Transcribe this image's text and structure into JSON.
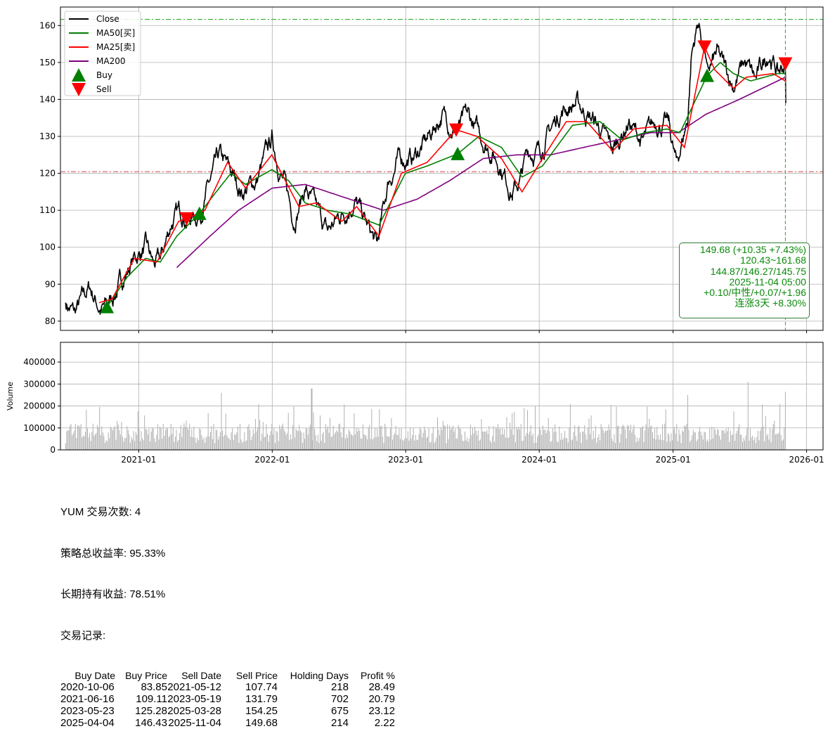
{
  "chart_data": [
    {
      "type": "line",
      "ticker": "YUM",
      "ylim": [
        77.5,
        165
      ],
      "yticks": [
        80,
        90,
        100,
        110,
        120,
        130,
        140,
        150,
        160
      ],
      "xlim": [
        "2020-06-01",
        "2026-02-15"
      ],
      "xticks": [
        {
          "date": "2021-01-01",
          "label": "2021-01"
        },
        {
          "date": "2022-01-01",
          "label": "2022-01"
        },
        {
          "date": "2023-01-01",
          "label": "2023-01"
        },
        {
          "date": "2024-01-01",
          "label": "2024-01"
        },
        {
          "date": "2025-01-01",
          "label": "2025-01"
        },
        {
          "date": "2026-01-01",
          "label": "2026-01"
        }
      ],
      "grid": true,
      "legend": "top-left",
      "legend_entries": [
        {
          "label": "Close",
          "color": "#000000",
          "kind": "line"
        },
        {
          "label": "MA50[买]",
          "color": "#008000",
          "kind": "line"
        },
        {
          "label": "MA25[卖]",
          "color": "#ff0000",
          "kind": "line"
        },
        {
          "label": "MA200",
          "color": "#800080",
          "kind": "line"
        },
        {
          "label": "Buy",
          "color": "#008000",
          "kind": "up-triangle"
        },
        {
          "label": "Sell",
          "color": "#ff0000",
          "kind": "down-triangle"
        }
      ],
      "hlines": [
        {
          "y": 161.68,
          "color": "#22aa22",
          "style": "dashdot"
        },
        {
          "y": 120.43,
          "color": "#dd4444",
          "style": "dashdot"
        }
      ],
      "vline": {
        "date": "2025-11-04",
        "color": "#22aa22",
        "style": "dashed"
      },
      "series_keypoints": {
        "close": [
          [
            "2020-06-15",
            85
          ],
          [
            "2020-07-10",
            82
          ],
          [
            "2020-08-20",
            89
          ],
          [
            "2020-09-20",
            83
          ],
          [
            "2020-10-06",
            83.85
          ],
          [
            "2020-11-10",
            90
          ],
          [
            "2020-12-20",
            97
          ],
          [
            "2021-01-20",
            100
          ],
          [
            "2021-02-10",
            95
          ],
          [
            "2021-03-01",
            96
          ],
          [
            "2021-04-01",
            107
          ],
          [
            "2021-05-01",
            110
          ],
          [
            "2021-05-12",
            107.74
          ],
          [
            "2021-06-16",
            109.11
          ],
          [
            "2021-07-10",
            116
          ],
          [
            "2021-08-10",
            124
          ],
          [
            "2021-09-10",
            120
          ],
          [
            "2021-10-10",
            115
          ],
          [
            "2021-11-20",
            118
          ],
          [
            "2021-12-31",
            129
          ],
          [
            "2022-02-01",
            118
          ],
          [
            "2022-03-01",
            108
          ],
          [
            "2022-04-01",
            116
          ],
          [
            "2022-05-01",
            110
          ],
          [
            "2022-06-01",
            104
          ],
          [
            "2022-07-01",
            108
          ],
          [
            "2022-08-15",
            113
          ],
          [
            "2022-09-15",
            106
          ],
          [
            "2022-10-15",
            100
          ],
          [
            "2022-11-15",
            118
          ],
          [
            "2022-12-15",
            124
          ],
          [
            "2023-01-20",
            124
          ],
          [
            "2023-03-01",
            129
          ],
          [
            "2023-04-10",
            136
          ],
          [
            "2023-05-19",
            131.79
          ],
          [
            "2023-06-20",
            135
          ],
          [
            "2023-08-01",
            129
          ],
          [
            "2023-09-15",
            123
          ],
          [
            "2023-10-20",
            115
          ],
          [
            "2023-11-10",
            118
          ],
          [
            "2023-12-01",
            126
          ],
          [
            "2024-01-01",
            126
          ],
          [
            "2024-03-01",
            137
          ],
          [
            "2024-04-10",
            139
          ],
          [
            "2024-06-01",
            134
          ],
          [
            "2024-07-20",
            126
          ],
          [
            "2024-09-01",
            134
          ],
          [
            "2024-10-10",
            128
          ],
          [
            "2024-11-15",
            134
          ],
          [
            "2024-12-20",
            133
          ],
          [
            "2025-01-10",
            122
          ],
          [
            "2025-02-10",
            135
          ],
          [
            "2025-02-20",
            152
          ],
          [
            "2025-03-10",
            161
          ],
          [
            "2025-03-28",
            154.25
          ],
          [
            "2025-04-04",
            146.43
          ],
          [
            "2025-05-01",
            152
          ],
          [
            "2025-06-15",
            144
          ],
          [
            "2025-07-15",
            150
          ],
          [
            "2025-08-15",
            145
          ],
          [
            "2025-09-20",
            153
          ],
          [
            "2025-10-15",
            147
          ],
          [
            "2025-11-04",
            149.68
          ],
          [
            "2025-11-05",
            139
          ]
        ],
        "ma50": [
          [
            "2020-10-06",
            83.85
          ],
          [
            "2020-12-01",
            92
          ],
          [
            "2021-01-20",
            97
          ],
          [
            "2021-03-01",
            96
          ],
          [
            "2021-04-15",
            103
          ],
          [
            "2021-06-16",
            109.11
          ],
          [
            "2021-08-01",
            115
          ],
          [
            "2021-09-10",
            120
          ],
          [
            "2021-10-20",
            117
          ],
          [
            "2021-12-31",
            121
          ],
          [
            "2022-02-15",
            118
          ],
          [
            "2022-04-01",
            112
          ],
          [
            "2022-06-01",
            110
          ],
          [
            "2022-08-01",
            109
          ],
          [
            "2022-10-20",
            106
          ],
          [
            "2022-12-31",
            120
          ],
          [
            "2023-03-01",
            122
          ],
          [
            "2023-05-23",
            125.28
          ],
          [
            "2023-07-20",
            130
          ],
          [
            "2023-09-20",
            127
          ],
          [
            "2023-11-15",
            119
          ],
          [
            "2024-01-10",
            122
          ],
          [
            "2024-04-01",
            133
          ],
          [
            "2024-06-15",
            134
          ],
          [
            "2024-08-15",
            129
          ],
          [
            "2024-10-15",
            131
          ],
          [
            "2024-12-15",
            132
          ],
          [
            "2025-01-20",
            131
          ],
          [
            "2025-04-04",
            146.43
          ],
          [
            "2025-05-10",
            150
          ],
          [
            "2025-06-15",
            147
          ],
          [
            "2025-08-01",
            145
          ],
          [
            "2025-10-15",
            147
          ],
          [
            "2025-11-04",
            147
          ]
        ],
        "ma25": [
          [
            "2020-09-15",
            85
          ],
          [
            "2020-10-20",
            86
          ],
          [
            "2020-12-20",
            97
          ],
          [
            "2021-02-20",
            96
          ],
          [
            "2021-04-20",
            107
          ],
          [
            "2021-05-12",
            107.74
          ],
          [
            "2021-07-01",
            110
          ],
          [
            "2021-09-01",
            123
          ],
          [
            "2021-10-20",
            116
          ],
          [
            "2021-12-31",
            125
          ],
          [
            "2022-03-15",
            111
          ],
          [
            "2022-05-01",
            112
          ],
          [
            "2022-07-10",
            107
          ],
          [
            "2022-08-20",
            111
          ],
          [
            "2022-10-20",
            103
          ],
          [
            "2022-12-20",
            120
          ],
          [
            "2023-03-01",
            123
          ],
          [
            "2023-05-19",
            131.79
          ],
          [
            "2023-07-15",
            130
          ],
          [
            "2023-09-20",
            124
          ],
          [
            "2023-11-15",
            115
          ],
          [
            "2024-01-10",
            124
          ],
          [
            "2024-03-15",
            134
          ],
          [
            "2024-05-10",
            134
          ],
          [
            "2024-07-20",
            126
          ],
          [
            "2024-09-15",
            132
          ],
          [
            "2024-12-15",
            133
          ],
          [
            "2025-02-01",
            127
          ],
          [
            "2025-03-28",
            154.25
          ],
          [
            "2025-04-25",
            148
          ],
          [
            "2025-06-15",
            143
          ],
          [
            "2025-07-20",
            146
          ],
          [
            "2025-10-01",
            147
          ],
          [
            "2025-11-04",
            145
          ]
        ],
        "ma200": [
          [
            "2021-04-15",
            94.5
          ],
          [
            "2021-07-15",
            103
          ],
          [
            "2021-10-01",
            110
          ],
          [
            "2022-01-01",
            116
          ],
          [
            "2022-04-01",
            117
          ],
          [
            "2022-08-01",
            113
          ],
          [
            "2022-11-01",
            110
          ],
          [
            "2023-02-01",
            113
          ],
          [
            "2023-05-01",
            118
          ],
          [
            "2023-08-01",
            124
          ],
          [
            "2023-11-01",
            125
          ],
          [
            "2024-02-01",
            125
          ],
          [
            "2024-05-01",
            127
          ],
          [
            "2024-08-01",
            129
          ],
          [
            "2024-11-01",
            131
          ],
          [
            "2025-01-15",
            131
          ],
          [
            "2025-04-01",
            136
          ],
          [
            "2025-07-01",
            140
          ],
          [
            "2025-11-04",
            146
          ]
        ]
      },
      "buy_markers": [
        [
          "2020-10-06",
          83.85
        ],
        [
          "2021-06-16",
          109.11
        ],
        [
          "2023-05-23",
          125.28
        ],
        [
          "2025-04-04",
          146.43
        ]
      ],
      "sell_markers": [
        [
          "2021-05-12",
          107.74
        ],
        [
          "2023-05-19",
          131.79
        ],
        [
          "2025-03-28",
          154.25
        ],
        [
          "2025-11-04",
          149.68
        ]
      ],
      "annotation_lines": [
        "149.68 (+10.35 +7.43%)",
        "120.43~161.68",
        "144.87/146.27/145.75",
        "2025-11-04 05:00",
        "+0.10/中性/+0.07/+1.96",
        "连涨3天 +8.30%"
      ]
    },
    {
      "type": "bar",
      "ylabel": "Volume",
      "ylim": [
        0,
        490000
      ],
      "yticks": [
        0,
        100000,
        200000,
        300000,
        400000
      ],
      "grid": true,
      "color": "#b0b0b0",
      "typical_range": [
        30000,
        120000
      ],
      "notable_spikes": [
        [
          "2021-08-15",
          260000
        ],
        [
          "2022-04-20",
          280000
        ],
        [
          "2025-02-10",
          250000
        ],
        [
          "2025-07-25",
          310000
        ],
        [
          "2025-11-04",
          265000
        ]
      ]
    }
  ],
  "summary": {
    "title_line": "YUM 交易次数: 4",
    "strategy_return": "策略总收益率: 95.33%",
    "hold_return": "长期持有收益: 78.51%",
    "records_label": "交易记录:",
    "columns": [
      "Buy Date",
      "Buy Price",
      "Sell Date",
      "Sell Price",
      "Holding Days",
      "Profit %"
    ],
    "rows": [
      [
        "2020-10-06",
        "83.85",
        "2021-05-12",
        "107.74",
        "218",
        "28.49"
      ],
      [
        "2021-06-16",
        "109.11",
        "2023-05-19",
        "131.79",
        "702",
        "20.79"
      ],
      [
        "2023-05-23",
        "125.28",
        "2025-03-28",
        "154.25",
        "675",
        "23.12"
      ],
      [
        "2025-04-04",
        "146.43",
        "2025-11-04",
        "149.68",
        "214",
        "2.22"
      ]
    ]
  }
}
